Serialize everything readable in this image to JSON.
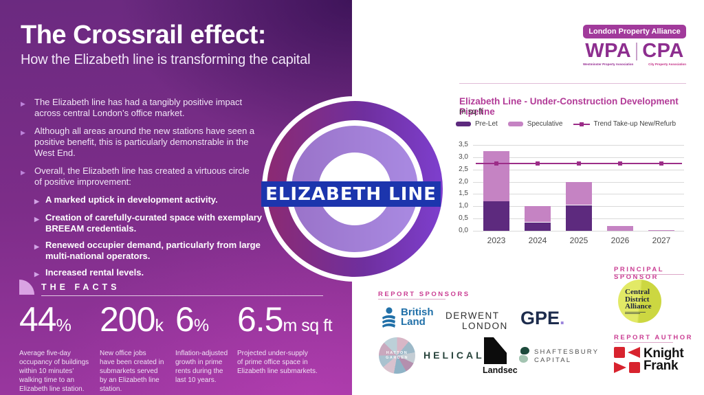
{
  "left_panel": {
    "title": "The Crossrail effect:",
    "subtitle": "How the Elizabeth line is transforming the capital",
    "bullets": [
      {
        "level": 1,
        "text": "The Elizabeth line has had a tangibly positive impact\nacross central London’s office market."
      },
      {
        "level": 1,
        "text": "Although all areas around the new stations have seen a\npositive benefit, this is particularly demonstrable in the\nWest End."
      },
      {
        "level": 1,
        "text": "Overall, the Elizabeth line has created a virtuous circle\nof positive improvement:"
      },
      {
        "level": 2,
        "text": "A marked uptick in development activity."
      },
      {
        "level": 2,
        "text": "Creation of carefully-curated space with exemplary\nBREEAM credentials."
      },
      {
        "level": 2,
        "text": "Renewed occupier demand, particularly from large\nmulti-national operators."
      },
      {
        "level": 2,
        "text": "Increased rental levels."
      }
    ],
    "facts_heading": "THE FACTS",
    "facts": [
      {
        "value": "44",
        "suffix": "%",
        "description": "Average five-day\noccupancy of buildings\nwithin 10 minutes’\nwalking time to an\nElizabeth line station."
      },
      {
        "value": "200",
        "suffix": "k",
        "description": "New office jobs\nhave been created in\nsubmarkets served\nby an Elizabeth line\nstation."
      },
      {
        "value": "6",
        "suffix": "%",
        "description": "Inflation-adjusted\ngrowth in prime\nrents during the\nlast 10 years."
      },
      {
        "value": "6.5",
        "suffix": "m sq ft",
        "description": "Projected under-supply\nof prime office space in\nElizabeth line submarkets."
      }
    ]
  },
  "roundel": {
    "label": "ELIZABETH LINE",
    "bar_color": "#1c35ad"
  },
  "lpa_logo": {
    "banner": "London Property Alliance",
    "wpa": "WPA",
    "cpa": "CPA",
    "wpa_sub": "Westminster Property Association",
    "cpa_sub": "City Property Association"
  },
  "chart_data": {
    "type": "bar",
    "stacked": true,
    "title": "Elizabeth Line - Under-Construction Development Pipeline",
    "unit_label": "m sq ft",
    "categories": [
      "2023",
      "2024",
      "2025",
      "2026",
      "2027"
    ],
    "series": [
      {
        "name": "Pre-Let",
        "color": "#5d2a7e",
        "values": [
          1.2,
          0.35,
          1.05,
          0,
          0
        ]
      },
      {
        "name": "Speculative",
        "color": "#c583c3",
        "values": [
          2.05,
          0.65,
          0.95,
          0.2,
          0.03
        ]
      }
    ],
    "trend": {
      "name": "Trend Take-up New/Refurb",
      "color": "#9c2d88",
      "values": [
        2.75,
        2.75,
        2.75,
        2.75,
        2.75
      ]
    },
    "ylim": [
      0,
      3.5
    ],
    "ytick_step": 0.5,
    "ytick_labels": [
      "0,0",
      "0,5",
      "1,0",
      "1,5",
      "2,0",
      "2,5",
      "3,0",
      "3,5"
    ],
    "grid": true,
    "legend_position": "top"
  },
  "report_sponsors": {
    "heading": "REPORT SPONSORS",
    "british_land": {
      "line1": "British",
      "line2": "Land"
    },
    "derwent": {
      "line1": "DERWENT",
      "line2": "LONDON"
    },
    "gpe": {
      "text": "GPE",
      "dot": "."
    },
    "hatton": {
      "line1": "HATTON",
      "line2": "GARDEN"
    },
    "helical": {
      "text": "HELICAL"
    },
    "landsec": {
      "text": "Landsec"
    },
    "shaftesbury": {
      "line1": "SHAFTESBURY",
      "line2": "CAPITAL"
    }
  },
  "principal_sponsor": {
    "heading": "PRINCIPAL SPONSOR",
    "cda": {
      "line1": "Central",
      "line2": "District",
      "line3": "Alliance"
    }
  },
  "report_author": {
    "heading": "REPORT AUTHOR",
    "kf": {
      "line1": "Knight",
      "line2": "Frank"
    }
  },
  "colors": {
    "panel_purple_top": "#6b2a80",
    "panel_purple_bottom": "#9b37a0",
    "accent_pink_heading": "#ca3d93",
    "chart_title": "#b23a97",
    "prelet": "#5d2a7e",
    "speculative": "#c583c3",
    "trend": "#9c2d88",
    "roundel_blue": "#1c35ad",
    "knight_frank_red": "#d8232e",
    "cda_yellow": "#d8e055",
    "british_land_blue": "#2170a8",
    "helical_green": "#27433b"
  }
}
